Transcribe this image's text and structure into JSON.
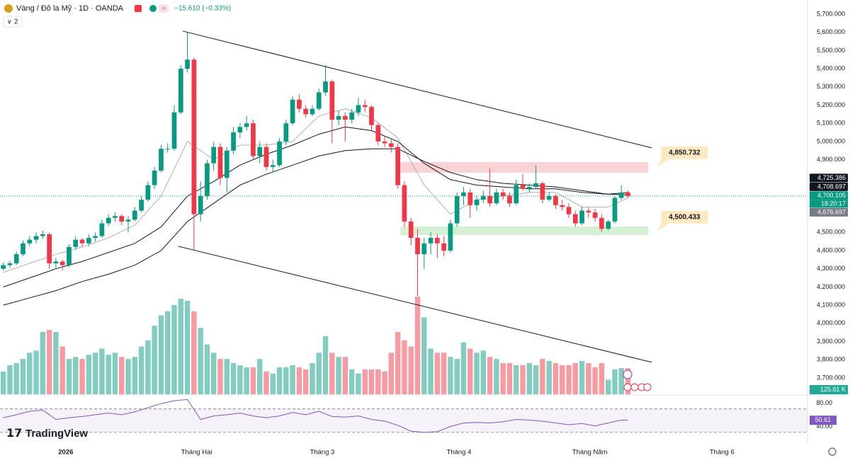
{
  "header": {
    "symbol": "Vàng / Đô la Mỹ · 1D · OANDA",
    "change": "−15.610 (−0.33%)",
    "indicator_count": "2"
  },
  "brand": "TradingView",
  "chart_data": {
    "type": "candlestick",
    "up_color": "#089981",
    "down_color": "#f23645",
    "candles": [
      [
        4300,
        4335,
        4290,
        4320
      ],
      [
        4320,
        4345,
        4305,
        4330
      ],
      [
        4330,
        4395,
        4320,
        4380
      ],
      [
        4380,
        4455,
        4370,
        4440
      ],
      [
        4440,
        4480,
        4425,
        4460
      ],
      [
        4460,
        4500,
        4440,
        4480
      ],
      [
        4480,
        4510,
        4465,
        4490
      ],
      [
        4490,
        4500,
        4300,
        4330
      ],
      [
        4330,
        4360,
        4300,
        4340
      ],
      [
        4340,
        4350,
        4290,
        4320
      ],
      [
        4320,
        4435,
        4310,
        4420
      ],
      [
        4420,
        4480,
        4405,
        4460
      ],
      [
        4460,
        4470,
        4420,
        4440
      ],
      [
        4440,
        4490,
        4425,
        4470
      ],
      [
        4470,
        4500,
        4450,
        4480
      ],
      [
        4480,
        4570,
        4470,
        4550
      ],
      [
        4550,
        4600,
        4535,
        4580
      ],
      [
        4580,
        4610,
        4560,
        4590
      ],
      [
        4590,
        4600,
        4540,
        4560
      ],
      [
        4560,
        4590,
        4500,
        4570
      ],
      [
        4570,
        4640,
        4560,
        4620
      ],
      [
        4620,
        4700,
        4610,
        4680
      ],
      [
        4680,
        4780,
        4670,
        4760
      ],
      [
        4760,
        4860,
        4740,
        4840
      ],
      [
        4840,
        4980,
        4830,
        4960
      ],
      [
        4960,
        4990,
        4940,
        4960
      ],
      [
        4960,
        5200,
        4950,
        5160
      ],
      [
        5160,
        5420,
        5150,
        5400
      ],
      [
        5400,
        5600,
        5380,
        5450
      ],
      [
        5450,
        5460,
        4400,
        4600
      ],
      [
        4600,
        4780,
        4560,
        4700
      ],
      [
        4700,
        4900,
        4680,
        4880
      ],
      [
        4880,
        5000,
        4840,
        4970
      ],
      [
        4970,
        4990,
        4760,
        4800
      ],
      [
        4800,
        4970,
        4720,
        4950
      ],
      [
        4950,
        5080,
        4930,
        5050
      ],
      [
        5050,
        5100,
        5020,
        5080
      ],
      [
        5080,
        5140,
        5060,
        5100
      ],
      [
        5100,
        5120,
        4900,
        4920
      ],
      [
        4920,
        5000,
        4880,
        4970
      ],
      [
        4970,
        4990,
        4840,
        4860
      ],
      [
        4860,
        4900,
        4830,
        4870
      ],
      [
        4870,
        5020,
        4860,
        5000
      ],
      [
        5000,
        5120,
        4980,
        5100
      ],
      [
        5100,
        5250,
        5090,
        5230
      ],
      [
        5230,
        5260,
        5160,
        5180
      ],
      [
        5180,
        5200,
        5130,
        5150
      ],
      [
        5150,
        5200,
        5140,
        5180
      ],
      [
        5180,
        5290,
        5170,
        5270
      ],
      [
        5270,
        5420,
        5250,
        5330
      ],
      [
        5330,
        5340,
        4990,
        5120
      ],
      [
        5120,
        5170,
        5090,
        5140
      ],
      [
        5140,
        5160,
        5000,
        5120
      ],
      [
        5120,
        5180,
        5100,
        5160
      ],
      [
        5160,
        5240,
        5140,
        5200
      ],
      [
        5200,
        5230,
        5160,
        5190
      ],
      [
        5190,
        5200,
        5060,
        5090
      ],
      [
        5090,
        5100,
        4980,
        5000
      ],
      [
        5000,
        5030,
        4970,
        4990
      ],
      [
        4990,
        5010,
        4940,
        4970
      ],
      [
        4970,
        4990,
        4740,
        4760
      ],
      [
        4760,
        4780,
        4530,
        4560
      ],
      [
        4560,
        4580,
        4430,
        4470
      ],
      [
        4470,
        4520,
        4150,
        4380
      ],
      [
        4380,
        4470,
        4300,
        4440
      ],
      [
        4440,
        4500,
        4380,
        4470
      ],
      [
        4470,
        4490,
        4360,
        4440
      ],
      [
        4440,
        4480,
        4370,
        4400
      ],
      [
        4400,
        4570,
        4390,
        4550
      ],
      [
        4550,
        4720,
        4530,
        4700
      ],
      [
        4700,
        4750,
        4650,
        4720
      ],
      [
        4720,
        4740,
        4580,
        4650
      ],
      [
        4650,
        4700,
        4620,
        4680
      ],
      [
        4680,
        4730,
        4660,
        4700
      ],
      [
        4700,
        4850,
        4640,
        4660
      ],
      [
        4660,
        4740,
        4650,
        4720
      ],
      [
        4720,
        4740,
        4680,
        4700
      ],
      [
        4700,
        4720,
        4640,
        4660
      ],
      [
        4660,
        4790,
        4650,
        4760
      ],
      [
        4760,
        4820,
        4730,
        4740
      ],
      [
        4740,
        4770,
        4720,
        4750
      ],
      [
        4750,
        4870,
        4740,
        4770
      ],
      [
        4770,
        4780,
        4660,
        4680
      ],
      [
        4680,
        4720,
        4670,
        4700
      ],
      [
        4700,
        4710,
        4630,
        4650
      ],
      [
        4650,
        4680,
        4620,
        4640
      ],
      [
        4640,
        4660,
        4580,
        4600
      ],
      [
        4600,
        4620,
        4530,
        4550
      ],
      [
        4550,
        4640,
        4540,
        4620
      ],
      [
        4620,
        4640,
        4580,
        4610
      ],
      [
        4610,
        4630,
        4560,
        4580
      ],
      [
        4580,
        4600,
        4500,
        4520
      ],
      [
        4520,
        4570,
        4510,
        4560
      ],
      [
        4560,
        4700,
        4550,
        4690
      ],
      [
        4690,
        4760,
        4680,
        4720
      ],
      [
        4720,
        4730,
        4690,
        4700.105
      ]
    ],
    "xlim": [
      -0.5,
      122.3
    ],
    "xticks": [
      {
        "value": 9.5,
        "label": "2026"
      },
      {
        "value": 29.4,
        "label": "Tháng Hai"
      },
      {
        "value": 48.5,
        "label": "Tháng 3"
      },
      {
        "value": 69.3,
        "label": "Tháng 4"
      },
      {
        "value": 89.2,
        "label": "Tháng Năm"
      },
      {
        "value": 109.3,
        "label": "Tháng 6"
      }
    ],
    "ylim": [
      3610,
      5778
    ],
    "yticks": [
      {
        "value": 5700,
        "label": "5,700.000"
      },
      {
        "value": 5600,
        "label": "5,600.000"
      },
      {
        "value": 5500,
        "label": "5,500.000"
      },
      {
        "value": 5400,
        "label": "5,400.000"
      },
      {
        "value": 5300,
        "label": "5,300.000"
      },
      {
        "value": 5200,
        "label": "5,200.000"
      },
      {
        "value": 5100,
        "label": "5,100.000"
      },
      {
        "value": 5000,
        "label": "5,000.000"
      },
      {
        "value": 4900,
        "label": "4,900.000"
      },
      {
        "value": 4800,
        "label": "4,800.000"
      },
      {
        "value": 4700,
        "label": "4,700.000"
      },
      {
        "value": 4600,
        "label": "4,600.000"
      },
      {
        "value": 4500,
        "label": "4,500.000"
      },
      {
        "value": 4400,
        "label": "4,400.000"
      },
      {
        "value": 4300,
        "label": "4,300.000"
      },
      {
        "value": 4200,
        "label": "4,200.000"
      },
      {
        "value": 4100,
        "label": "4,100.000"
      },
      {
        "value": 4000,
        "label": "4,000.000"
      },
      {
        "value": 3900,
        "label": "3,900.000"
      },
      {
        "value": 3800,
        "label": "3,800.000"
      },
      {
        "value": 3700,
        "label": "3,700.000"
      }
    ],
    "moving_averages": [
      {
        "color": "#9e9e9e",
        "x": [
          0,
          4,
          8,
          12,
          16,
          20,
          24,
          28,
          32,
          36,
          40,
          44,
          48,
          52,
          56,
          60,
          64,
          68,
          72,
          76,
          80,
          84,
          88,
          92,
          95
        ],
        "values": [
          4280,
          4330,
          4380,
          4420,
          4470,
          4540,
          4700,
          5000,
          4900,
          4980,
          4980,
          5000,
          5140,
          5180,
          5130,
          5020,
          4760,
          4600,
          4680,
          4700,
          4720,
          4720,
          4640,
          4640,
          4690
        ]
      },
      {
        "color": "#131722",
        "x": [
          0,
          4,
          8,
          12,
          16,
          20,
          24,
          28,
          32,
          36,
          40,
          44,
          48,
          52,
          56,
          60,
          64,
          68,
          72,
          76,
          80,
          84,
          88,
          92,
          95
        ],
        "values": [
          4200,
          4250,
          4300,
          4340,
          4390,
          4440,
          4530,
          4700,
          4780,
          4870,
          4930,
          4980,
          5040,
          5080,
          5060,
          5000,
          4880,
          4790,
          4760,
          4750,
          4740,
          4740,
          4720,
          4710,
          4720
        ]
      },
      {
        "color": "#131722",
        "x": [
          0,
          4,
          8,
          12,
          16,
          20,
          24,
          28,
          32,
          36,
          40,
          44,
          48,
          52,
          56,
          60,
          64,
          68,
          72,
          76,
          80,
          84,
          88,
          92,
          95
        ],
        "values": [
          4100,
          4140,
          4180,
          4230,
          4270,
          4320,
          4400,
          4560,
          4660,
          4760,
          4820,
          4870,
          4920,
          4950,
          4960,
          4960,
          4890,
          4830,
          4790,
          4770,
          4760,
          4750,
          4730,
          4710,
          4708
        ]
      }
    ],
    "trendlines": [
      {
        "color": "#131722",
        "x": [
          27.3,
          98.6
        ],
        "values": [
          5607,
          4965
        ]
      },
      {
        "color": "#131722",
        "x": [
          26.6,
          98.6
        ],
        "values": [
          4424,
          3786
        ]
      }
    ],
    "zones": [
      {
        "color": "#f9d3d6",
        "x": [
          60.4,
          98.1
        ],
        "values": [
          4828,
          4887
        ],
        "label": {
          "value": 4850.732,
          "label": "4,850.732"
        }
      },
      {
        "color": "#d6f0d6",
        "x": [
          60.4,
          98.1
        ],
        "values": [
          4486,
          4533
        ],
        "label": {
          "value": 4500.433,
          "label": "4,500.433"
        }
      }
    ],
    "price_tags": [
      {
        "value": 4725.386,
        "label": "4,725.386",
        "color": "#131722"
      },
      {
        "value": 4708.697,
        "label": "4,708.697",
        "color": "#131722"
      },
      {
        "value": 4700.105,
        "label": "4,700.105",
        "color": "#089981"
      },
      {
        "value": 4676.697,
        "label": "4,676.697",
        "color": "#787b86"
      }
    ],
    "countdown": "18:20:17",
    "volume": {
      "values": [
        110,
        140,
        150,
        170,
        200,
        210,
        300,
        310,
        300,
        230,
        170,
        180,
        170,
        190,
        200,
        220,
        190,
        200,
        180,
        170,
        180,
        230,
        260,
        330,
        380,
        400,
        430,
        460,
        450,
        400,
        320,
        240,
        200,
        170,
        170,
        150,
        140,
        130,
        130,
        170,
        110,
        100,
        130,
        130,
        140,
        130,
        120,
        150,
        200,
        280,
        200,
        180,
        180,
        120,
        100,
        120,
        120,
        120,
        110,
        200,
        300,
        260,
        230,
        470,
        370,
        220,
        200,
        200,
        180,
        170,
        250,
        220,
        200,
        210,
        180,
        170,
        150,
        150,
        140,
        140,
        150,
        140,
        170,
        160,
        150,
        140,
        140,
        150,
        160,
        150,
        130,
        150,
        70,
        120,
        126,
        125.61
      ],
      "ylim": [
        0,
        535
      ],
      "last": {
        "value": 125.61,
        "label": "125.61 K"
      }
    },
    "rsi": {
      "color": "#7e57c2",
      "x": [
        0,
        2,
        4,
        6,
        8,
        10,
        12,
        14,
        16,
        18,
        20,
        22,
        24,
        26,
        28,
        30,
        32,
        34,
        36,
        38,
        40,
        42,
        44,
        46,
        48,
        50,
        52,
        54,
        56,
        58,
        60,
        62,
        64,
        66,
        68,
        70,
        72,
        74,
        76,
        78,
        80,
        82,
        84,
        86,
        88,
        90,
        92,
        94,
        95
      ],
      "values": [
        55,
        60,
        66,
        68,
        52,
        55,
        57,
        60,
        63,
        60,
        65,
        72,
        79,
        84,
        86,
        52,
        58,
        60,
        63,
        58,
        55,
        58,
        64,
        60,
        66,
        57,
        56,
        58,
        52,
        49,
        42,
        32,
        30,
        31,
        40,
        46,
        47,
        46,
        48,
        52,
        51,
        49,
        46,
        43,
        45,
        41,
        46,
        51,
        50.61
      ],
      "ylim": [
        20,
        95
      ],
      "band": [
        70,
        30
      ],
      "yticks": [
        {
          "value": 80,
          "label": "80.00"
        },
        {
          "value": 40,
          "label": "40.00"
        }
      ],
      "last": {
        "value": 50.61,
        "label": "50.61"
      }
    }
  }
}
